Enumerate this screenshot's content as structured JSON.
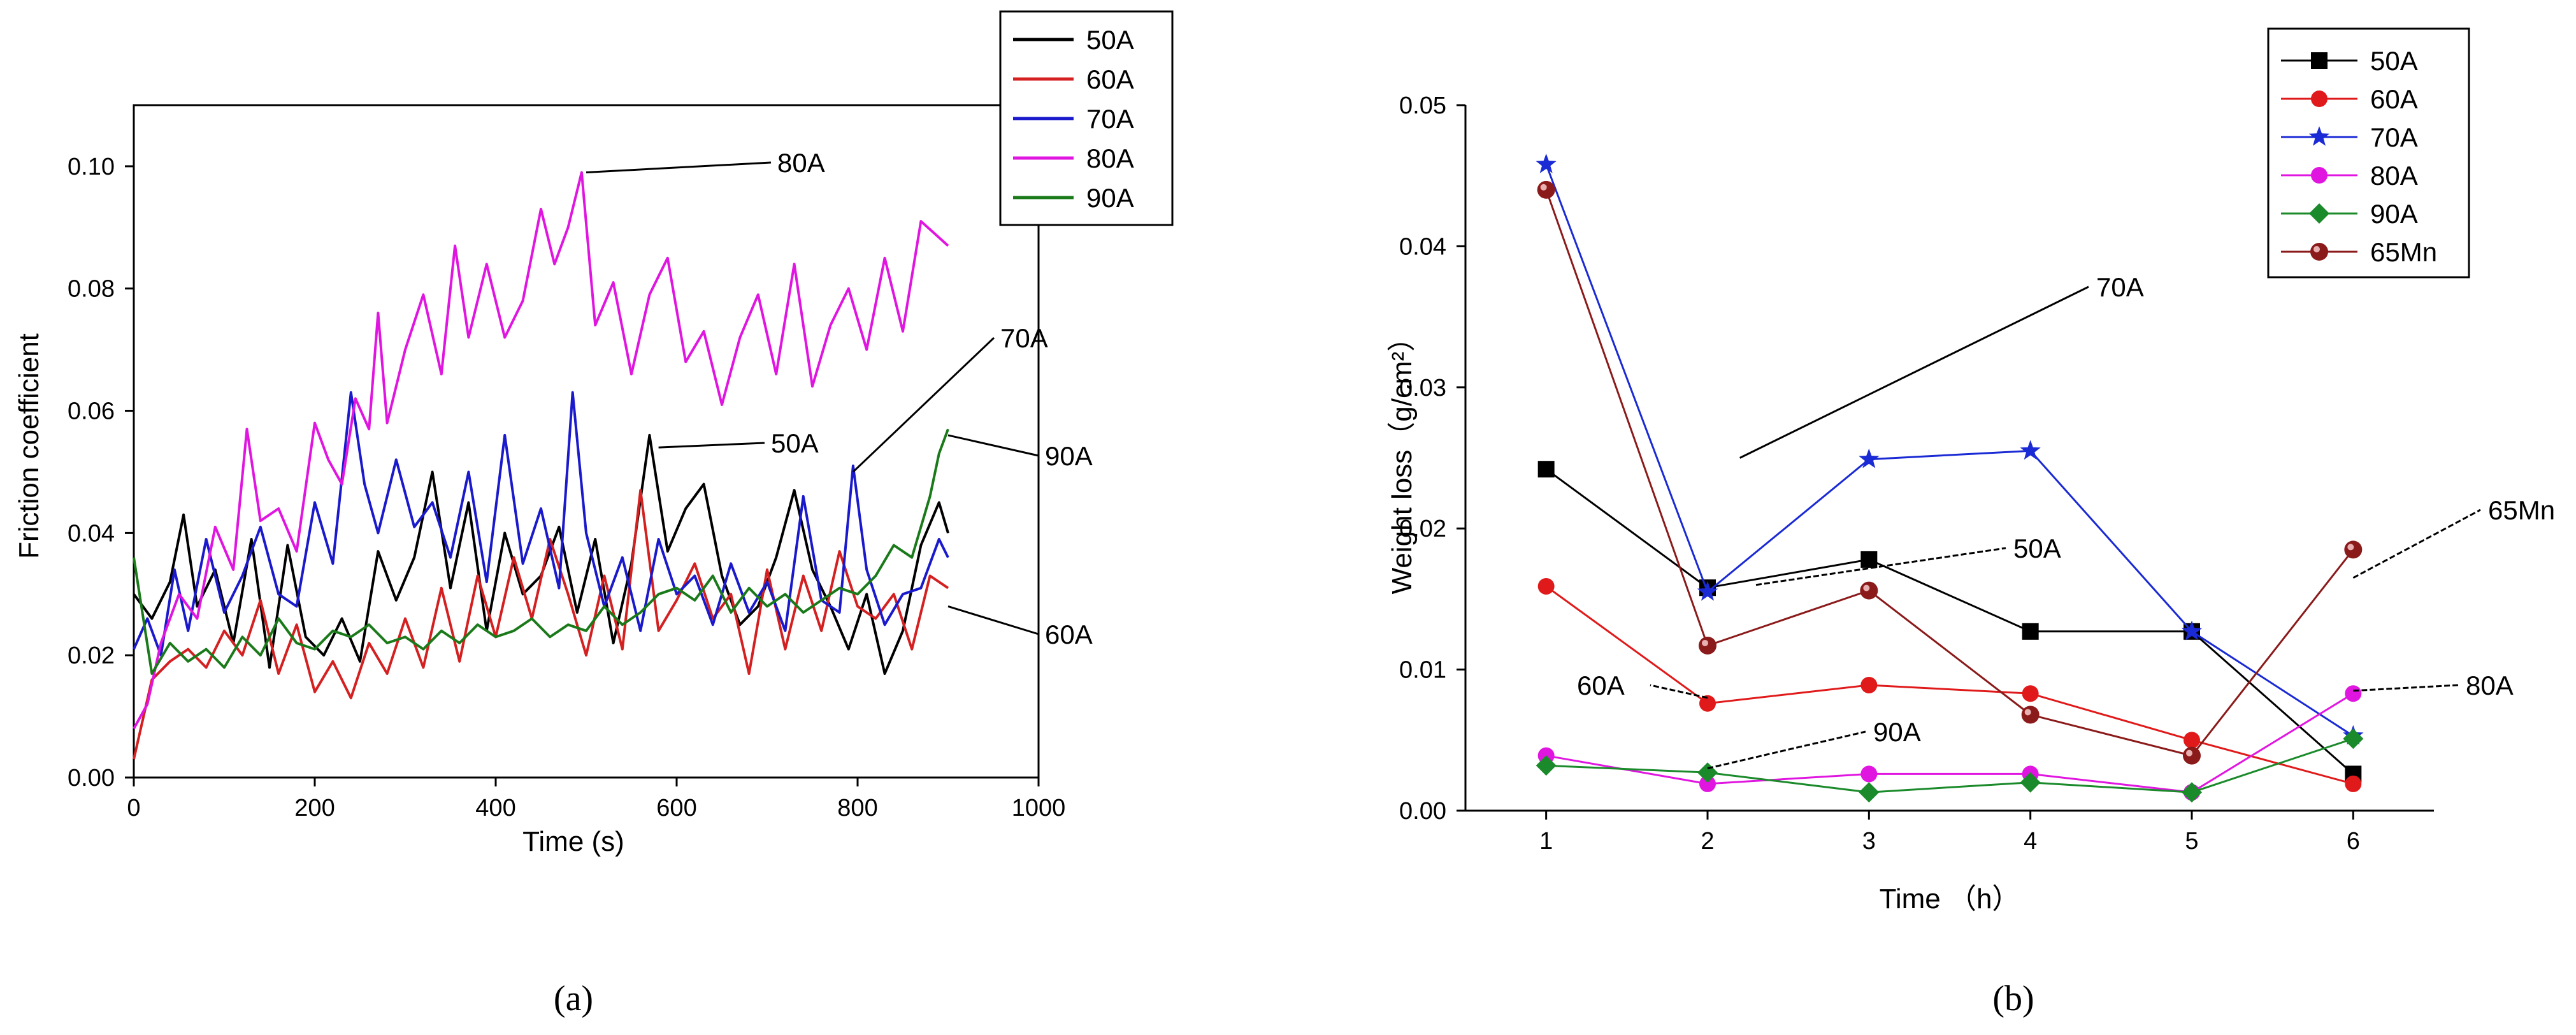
{
  "chart_data": [
    {
      "type": "line",
      "panel_label": "(a)",
      "xlabel": "Time (s)",
      "ylabel": "Friction coefficient",
      "xlim": [
        0,
        1000
      ],
      "ylim": [
        0,
        0.11
      ],
      "x_ticks": [
        "0",
        "200",
        "400",
        "600",
        "800",
        "1000"
      ],
      "y_ticks": [
        "0.00",
        "0.02",
        "0.04",
        "0.06",
        "0.08",
        "0.10"
      ],
      "legend": {
        "placement": "top-right",
        "entries": [
          "50A",
          "60A",
          "70A",
          "80A",
          "90A"
        ]
      },
      "annotations": [
        {
          "text": "80A",
          "target": [
            500,
            0.099
          ]
        },
        {
          "text": "70A",
          "target": [
            795,
            0.05
          ]
        },
        {
          "text": "50A",
          "target": [
            580,
            0.054
          ]
        },
        {
          "text": "90A",
          "target": [
            900,
            0.056
          ]
        },
        {
          "text": "60A",
          "target": [
            900,
            0.028
          ]
        }
      ],
      "series": [
        {
          "name": "50A",
          "color": "#000000",
          "x": [
            0,
            20,
            40,
            55,
            70,
            90,
            110,
            130,
            150,
            170,
            190,
            210,
            230,
            250,
            270,
            290,
            310,
            330,
            350,
            370,
            390,
            410,
            430,
            450,
            470,
            490,
            510,
            530,
            550,
            570,
            590,
            610,
            630,
            650,
            670,
            690,
            710,
            730,
            750,
            770,
            790,
            810,
            830,
            850,
            870,
            890,
            900
          ],
          "values": [
            0.03,
            0.026,
            0.032,
            0.043,
            0.028,
            0.034,
            0.022,
            0.039,
            0.018,
            0.038,
            0.023,
            0.02,
            0.026,
            0.019,
            0.037,
            0.029,
            0.036,
            0.05,
            0.031,
            0.045,
            0.024,
            0.04,
            0.03,
            0.033,
            0.041,
            0.027,
            0.039,
            0.022,
            0.035,
            0.056,
            0.037,
            0.044,
            0.048,
            0.033,
            0.025,
            0.028,
            0.036,
            0.047,
            0.034,
            0.028,
            0.021,
            0.03,
            0.017,
            0.024,
            0.038,
            0.045,
            0.04
          ]
        },
        {
          "name": "60A",
          "color": "#d42020",
          "x": [
            0,
            20,
            40,
            60,
            80,
            100,
            120,
            140,
            160,
            180,
            200,
            220,
            240,
            260,
            280,
            300,
            320,
            340,
            360,
            380,
            400,
            420,
            440,
            460,
            480,
            500,
            520,
            540,
            560,
            580,
            600,
            620,
            640,
            660,
            680,
            700,
            720,
            740,
            760,
            780,
            800,
            820,
            840,
            860,
            880,
            900
          ],
          "values": [
            0.003,
            0.016,
            0.019,
            0.021,
            0.018,
            0.024,
            0.02,
            0.029,
            0.017,
            0.025,
            0.014,
            0.019,
            0.013,
            0.022,
            0.017,
            0.026,
            0.018,
            0.031,
            0.019,
            0.033,
            0.023,
            0.036,
            0.026,
            0.039,
            0.03,
            0.02,
            0.033,
            0.021,
            0.047,
            0.024,
            0.029,
            0.035,
            0.026,
            0.03,
            0.017,
            0.034,
            0.021,
            0.033,
            0.024,
            0.037,
            0.028,
            0.026,
            0.03,
            0.021,
            0.033,
            0.031
          ]
        },
        {
          "name": "70A",
          "color": "#1a1acc",
          "x": [
            0,
            15,
            30,
            45,
            60,
            80,
            100,
            120,
            140,
            160,
            180,
            200,
            220,
            240,
            255,
            270,
            290,
            310,
            330,
            350,
            370,
            390,
            410,
            430,
            450,
            470,
            485,
            500,
            520,
            540,
            560,
            580,
            600,
            620,
            640,
            660,
            680,
            700,
            720,
            740,
            760,
            780,
            795,
            810,
            830,
            850,
            870,
            890,
            900
          ],
          "values": [
            0.021,
            0.026,
            0.02,
            0.034,
            0.024,
            0.039,
            0.027,
            0.033,
            0.041,
            0.03,
            0.028,
            0.045,
            0.035,
            0.063,
            0.048,
            0.04,
            0.052,
            0.041,
            0.045,
            0.036,
            0.05,
            0.032,
            0.056,
            0.035,
            0.044,
            0.031,
            0.063,
            0.04,
            0.028,
            0.036,
            0.024,
            0.039,
            0.03,
            0.033,
            0.025,
            0.035,
            0.027,
            0.032,
            0.024,
            0.046,
            0.029,
            0.027,
            0.051,
            0.034,
            0.025,
            0.03,
            0.031,
            0.039,
            0.036
          ]
        },
        {
          "name": "80A",
          "color": "#e016e0",
          "x": [
            0,
            15,
            30,
            50,
            70,
            90,
            110,
            125,
            140,
            160,
            180,
            200,
            215,
            230,
            245,
            260,
            270,
            280,
            300,
            320,
            340,
            355,
            370,
            390,
            410,
            430,
            450,
            465,
            480,
            495,
            510,
            530,
            550,
            570,
            590,
            610,
            630,
            650,
            670,
            690,
            710,
            730,
            750,
            770,
            790,
            810,
            830,
            850,
            870,
            885,
            900
          ],
          "values": [
            0.008,
            0.012,
            0.022,
            0.03,
            0.026,
            0.041,
            0.034,
            0.057,
            0.042,
            0.044,
            0.037,
            0.058,
            0.052,
            0.048,
            0.062,
            0.057,
            0.076,
            0.058,
            0.07,
            0.079,
            0.066,
            0.087,
            0.072,
            0.084,
            0.072,
            0.078,
            0.093,
            0.084,
            0.09,
            0.099,
            0.074,
            0.081,
            0.066,
            0.079,
            0.085,
            0.068,
            0.073,
            0.061,
            0.072,
            0.079,
            0.066,
            0.084,
            0.064,
            0.074,
            0.08,
            0.07,
            0.085,
            0.073,
            0.091,
            0.089,
            0.087
          ]
        },
        {
          "name": "90A",
          "color": "#1a7a1a",
          "x": [
            0,
            20,
            40,
            60,
            80,
            100,
            120,
            140,
            160,
            180,
            200,
            220,
            240,
            260,
            280,
            300,
            320,
            340,
            360,
            380,
            400,
            420,
            440,
            460,
            480,
            500,
            520,
            540,
            560,
            580,
            600,
            620,
            640,
            660,
            680,
            700,
            720,
            740,
            760,
            780,
            800,
            820,
            840,
            860,
            880,
            890,
            900
          ],
          "values": [
            0.036,
            0.017,
            0.022,
            0.019,
            0.021,
            0.018,
            0.023,
            0.02,
            0.026,
            0.022,
            0.021,
            0.024,
            0.023,
            0.025,
            0.022,
            0.023,
            0.021,
            0.024,
            0.022,
            0.025,
            0.023,
            0.024,
            0.026,
            0.023,
            0.025,
            0.024,
            0.028,
            0.025,
            0.027,
            0.03,
            0.031,
            0.029,
            0.033,
            0.027,
            0.031,
            0.028,
            0.03,
            0.027,
            0.029,
            0.031,
            0.03,
            0.033,
            0.038,
            0.036,
            0.046,
            0.053,
            0.057
          ]
        }
      ]
    },
    {
      "type": "line",
      "panel_label": "(b)",
      "xlabel": "Time （h）",
      "ylabel": "Weight loss（g/cm²）",
      "xlim": [
        0.5,
        6.5
      ],
      "ylim": [
        0,
        0.05
      ],
      "categories": [
        1,
        2,
        3,
        4,
        5,
        6
      ],
      "x_ticks": [
        "1",
        "2",
        "3",
        "4",
        "5",
        "6"
      ],
      "y_ticks": [
        "0.00",
        "0.01",
        "0.02",
        "0.03",
        "0.04",
        "0.05"
      ],
      "legend": {
        "placement": "top-right",
        "entries": [
          "50A",
          "60A",
          "70A",
          "80A",
          "90A",
          "65Mn"
        ]
      },
      "annotations": [
        {
          "text": "70A",
          "target": [
            2.2,
            0.025
          ]
        },
        {
          "text": "50A",
          "target": [
            2.3,
            0.016
          ]
        },
        {
          "text": "60A",
          "target": [
            2,
            0.008
          ]
        },
        {
          "text": "90A",
          "target": [
            2,
            0.003
          ]
        },
        {
          "text": "65Mn",
          "target": [
            6,
            0.0165
          ]
        },
        {
          "text": "80A",
          "target": [
            6,
            0.0085
          ]
        }
      ],
      "series": [
        {
          "name": "50A",
          "color": "#000000",
          "marker": "square",
          "values": [
            0.0242,
            0.0158,
            0.0178,
            0.0127,
            0.0127,
            0.0026
          ]
        },
        {
          "name": "60A",
          "color": "#e01a1a",
          "marker": "circle",
          "values": [
            0.0159,
            0.0076,
            0.0089,
            0.0083,
            0.005,
            0.0019
          ]
        },
        {
          "name": "70A",
          "color": "#1a2ad4",
          "marker": "star",
          "values": [
            0.0458,
            0.0155,
            0.0249,
            0.0255,
            0.0127,
            0.0053
          ]
        },
        {
          "name": "80A",
          "color": "#e016e0",
          "marker": "circle",
          "values": [
            0.0039,
            0.0019,
            0.0026,
            0.0026,
            0.0013,
            0.0083
          ]
        },
        {
          "name": "90A",
          "color": "#1a8a2a",
          "marker": "diamond",
          "values": [
            0.0032,
            0.0027,
            0.0013,
            0.002,
            0.0013,
            0.0051
          ]
        },
        {
          "name": "65Mn",
          "color": "#8b1a1a",
          "marker": "ball",
          "values": [
            0.044,
            0.0117,
            0.0156,
            0.0068,
            0.0039,
            0.0185
          ]
        }
      ]
    }
  ]
}
